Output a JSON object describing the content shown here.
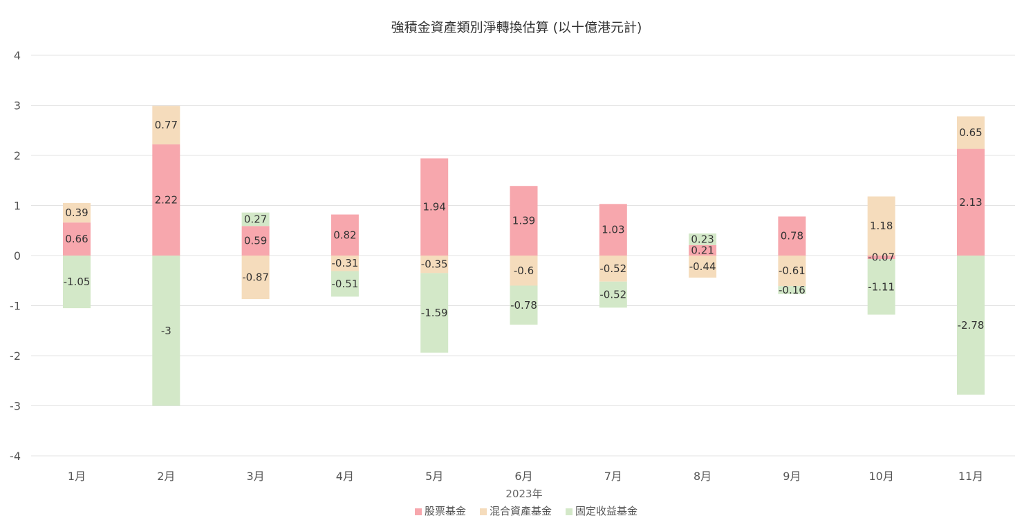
{
  "chart_data": {
    "type": "bar",
    "stacked": true,
    "title": "強積金資產類別淨轉換估算 (以十億港元計)",
    "xlabel": "2023年",
    "ylabel": "",
    "ylim": [
      -4,
      4
    ],
    "yticks": [
      4,
      3,
      2,
      1,
      0,
      -1,
      -2,
      -3,
      -4
    ],
    "grid": true,
    "legend_position": "bottom",
    "categories": [
      "1月",
      "2月",
      "3月",
      "4月",
      "5月",
      "6月",
      "7月",
      "8月",
      "9月",
      "10月",
      "11月"
    ],
    "series": [
      {
        "name": "股票基金",
        "color": "#f7a7ad",
        "values": [
          0.66,
          2.22,
          0.59,
          0.82,
          1.94,
          1.39,
          1.03,
          0.21,
          0.78,
          -0.07,
          2.13
        ]
      },
      {
        "name": "混合資產基金",
        "color": "#f5dcbc",
        "values": [
          0.39,
          0.77,
          -0.87,
          -0.31,
          -0.35,
          -0.6,
          -0.52,
          -0.44,
          -0.61,
          1.18,
          0.65
        ]
      },
      {
        "name": "固定收益基金",
        "color": "#d3e8c8",
        "values": [
          -1.05,
          -3,
          0.27,
          -0.51,
          -1.59,
          -0.78,
          -0.52,
          0.23,
          -0.16,
          -1.11,
          -2.78
        ]
      }
    ]
  }
}
